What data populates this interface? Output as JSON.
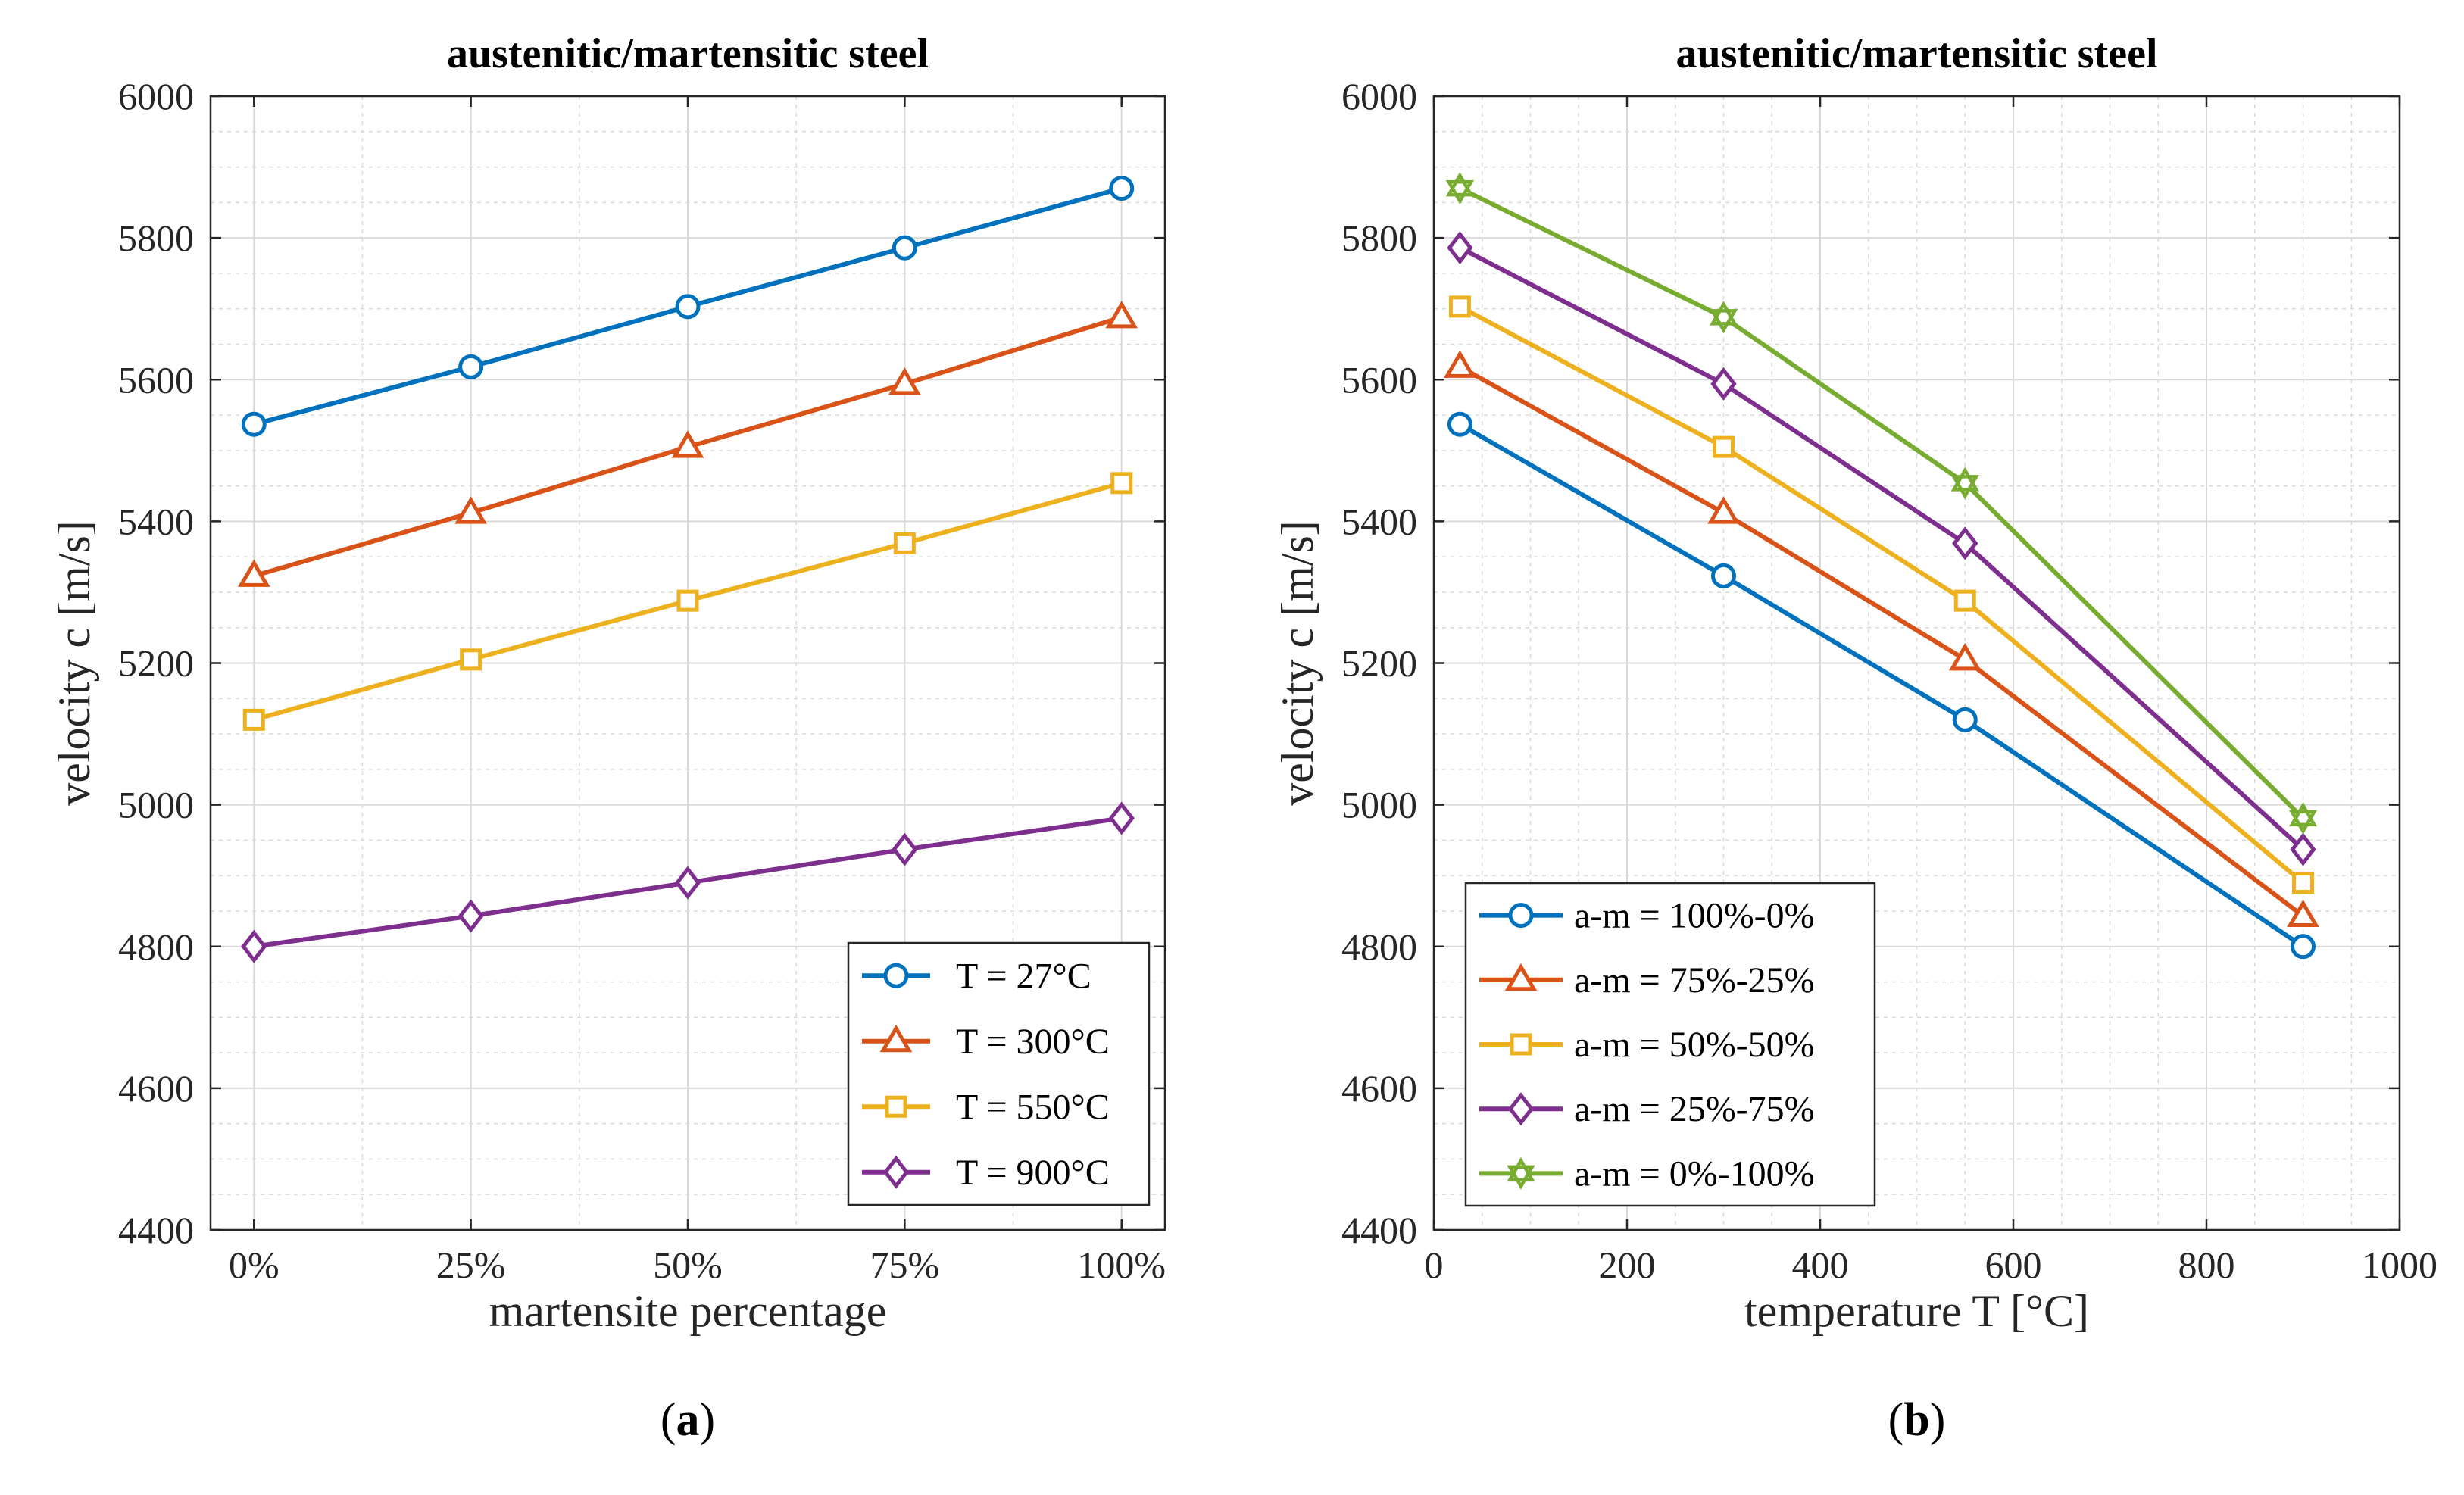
{
  "chart_data": [
    {
      "type": "line",
      "panel_label": "a",
      "title": "austenitic/martensitic steel",
      "xlabel": "martensite percentage",
      "ylabel": "velocity c [m/s]",
      "categories": [
        "0%",
        "25%",
        "50%",
        "75%",
        "100%"
      ],
      "x": [
        0,
        25,
        50,
        75,
        100
      ],
      "xlim": [
        -5,
        105
      ],
      "ylim": [
        4400,
        6000
      ],
      "yticks": [
        "4400",
        "4600",
        "4800",
        "5000",
        "5200",
        "5400",
        "5600",
        "5800",
        "6000"
      ],
      "grid": true,
      "legend_position": "bottom-right",
      "series": [
        {
          "name": "T = 27°C",
          "color": "#0072BD",
          "marker": "circle",
          "values": [
            5537,
            5618,
            5703,
            5786,
            5870
          ]
        },
        {
          "name": "T = 300°C",
          "color": "#D95319",
          "marker": "triangle",
          "values": [
            5323,
            5412,
            5505,
            5594,
            5688
          ]
        },
        {
          "name": "T = 550°C",
          "color": "#EDB120",
          "marker": "square",
          "values": [
            5120,
            5205,
            5288,
            5369,
            5454
          ]
        },
        {
          "name": "T = 900°C",
          "color": "#7E2F8E",
          "marker": "diamond",
          "values": [
            4800,
            4843,
            4890,
            4937,
            4981
          ]
        }
      ]
    },
    {
      "type": "line",
      "panel_label": "b",
      "title": "austenitic/martensitic steel",
      "xlabel": "temperature T [°C]",
      "ylabel": "velocity c [m/s]",
      "x": [
        27,
        300,
        550,
        900
      ],
      "xlim": [
        0,
        1000
      ],
      "xticks": [
        "0",
        "200",
        "400",
        "600",
        "800",
        "1000"
      ],
      "ylim": [
        4400,
        6000
      ],
      "yticks": [
        "4400",
        "4600",
        "4800",
        "5000",
        "5200",
        "5400",
        "5600",
        "5800",
        "6000"
      ],
      "grid": true,
      "legend_position": "bottom-left",
      "series": [
        {
          "name": "a-m = 100%-0%",
          "color": "#0072BD",
          "marker": "circle",
          "values": [
            5537,
            5323,
            5120,
            4800
          ]
        },
        {
          "name": "a-m = 75%-25%",
          "color": "#D95319",
          "marker": "triangle",
          "values": [
            5618,
            5412,
            5205,
            4843
          ]
        },
        {
          "name": "a-m = 50%-50%",
          "color": "#EDB120",
          "marker": "square",
          "values": [
            5703,
            5505,
            5288,
            4890
          ]
        },
        {
          "name": "a-m = 25%-75%",
          "color": "#7E2F8E",
          "marker": "diamond",
          "values": [
            5786,
            5594,
            5369,
            4937
          ]
        },
        {
          "name": "a-m = 0%-100%",
          "color": "#77AC30",
          "marker": "hexagram",
          "values": [
            5870,
            5688,
            5454,
            4981
          ]
        }
      ]
    }
  ]
}
